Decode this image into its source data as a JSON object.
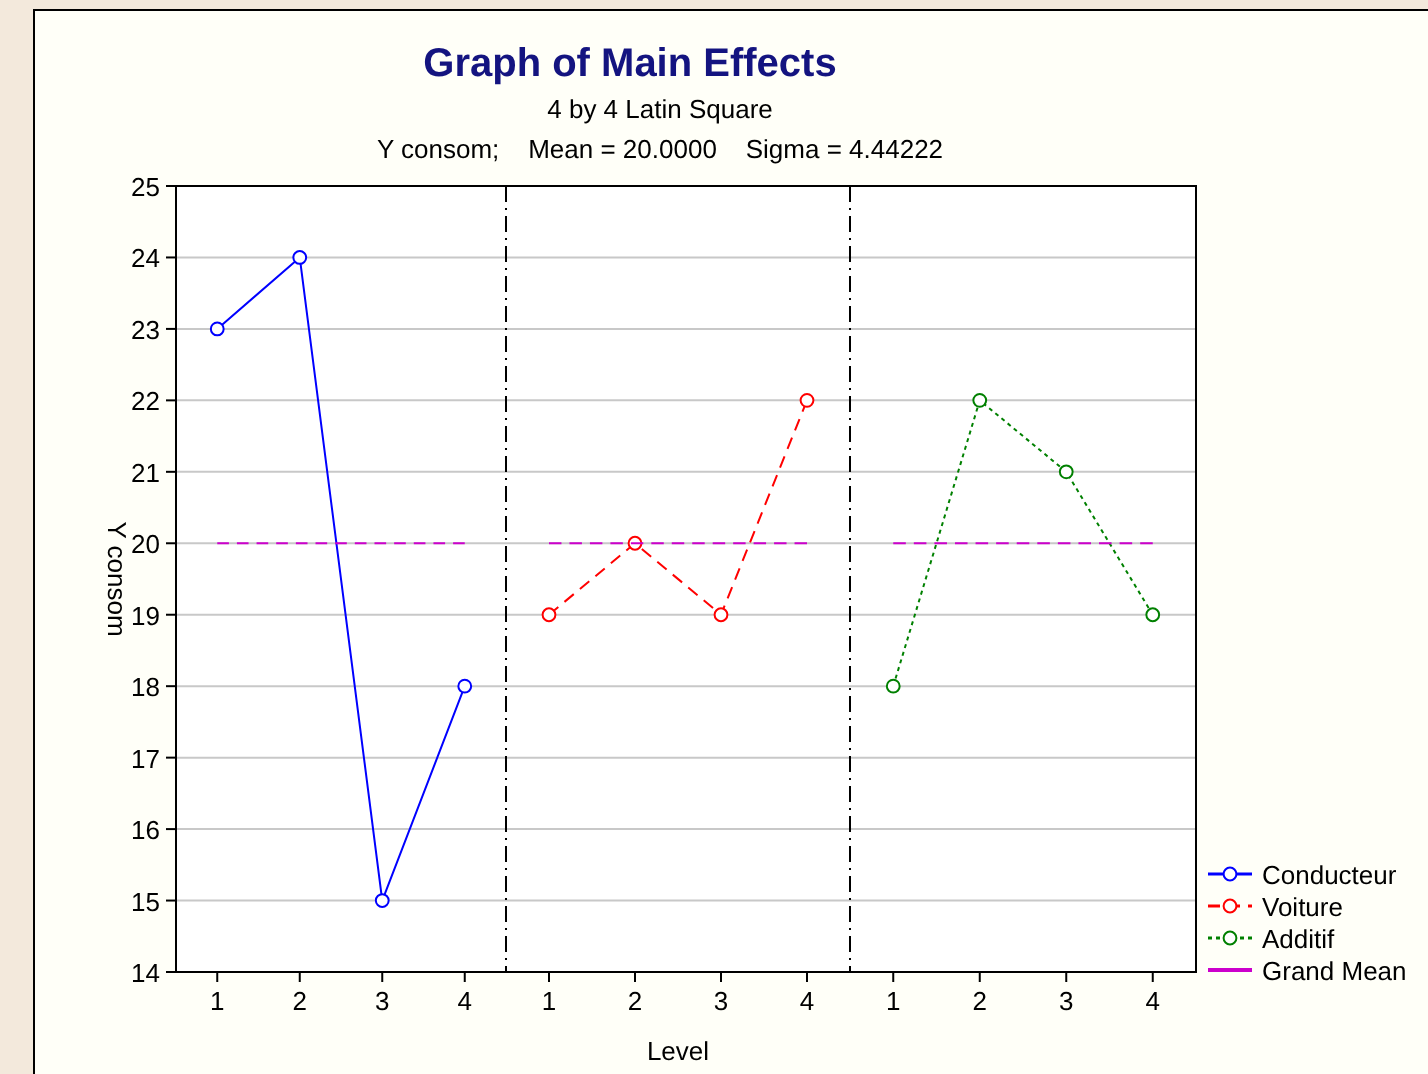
{
  "chart_data": [
    {
      "type": "line",
      "ylabel": "Y consom",
      "categories": [
        "1",
        "2",
        "3",
        "4"
      ],
      "ylim": [
        14,
        25
      ],
      "yticks": [
        14,
        15,
        16,
        17,
        18,
        19,
        20,
        21,
        22,
        23,
        24,
        25
      ],
      "grid": "y",
      "legend": "right",
      "series": [
        {
          "name": "Conducteur",
          "color": "#0000ff",
          "values": [
            23,
            24,
            15,
            18
          ],
          "marker": "circle",
          "line_style": "solid"
        },
        {
          "color": "#cc00cc",
          "values": [
            20,
            20,
            20,
            20
          ],
          "marker": "none",
          "line_style": "dashed"
        }
      ]
    },
    {
      "type": "line",
      "title": "Graph of Main Effects",
      "subtitle": "4 by 4 Latin Square",
      "annotations": [
        "Y consom;    Mean = 20.0000    Sigma = 4.44222"
      ],
      "xlabel": "Level",
      "categories": [
        "1",
        "2",
        "3",
        "4"
      ],
      "ylim": [
        14,
        25
      ],
      "yticks": [
        14,
        15,
        16,
        17,
        18,
        19,
        20,
        21,
        22,
        23,
        24,
        25
      ],
      "grid": "y",
      "tick_labels": "x",
      "legend": "right",
      "series": [
        {
          "name": "Voiture",
          "color": "#ff0000",
          "values": [
            19,
            20,
            19,
            22
          ],
          "marker": "circle",
          "line_style": "dashed"
        },
        {
          "color": "#cc00cc",
          "values": [
            20,
            20,
            20,
            20
          ],
          "marker": "none",
          "line_style": "dashed"
        }
      ]
    },
    {
      "type": "line",
      "categories": [
        "1",
        "2",
        "3",
        "4"
      ],
      "ylim": [
        14,
        25
      ],
      "yticks": [
        14,
        15,
        16,
        17,
        18,
        19,
        20,
        21,
        22,
        23,
        24,
        25
      ],
      "grid": "y",
      "tick_labels": "x",
      "legend": "right",
      "series": [
        {
          "name": "Additif",
          "color": "#008000",
          "values": [
            18,
            22,
            21,
            19
          ],
          "marker": "circle",
          "line_style": "dotted"
        },
        {
          "name": "Grand Mean",
          "color": "#cc00cc",
          "values": [
            20,
            20,
            20,
            20
          ],
          "marker": "none",
          "line_style": "dashed"
        }
      ]
    }
  ]
}
